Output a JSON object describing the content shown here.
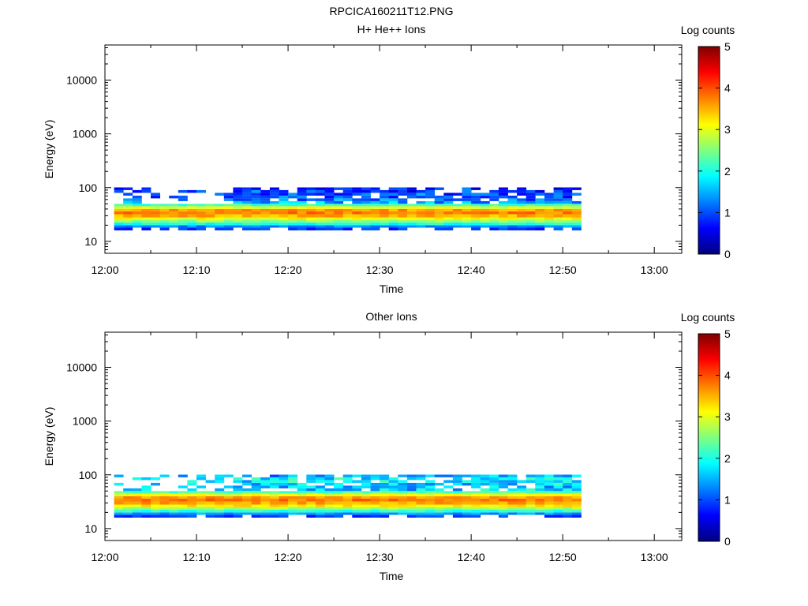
{
  "figure": {
    "title": "RPCICA160211T12.PNG"
  },
  "colorbar": {
    "label": "Log counts",
    "range": [
      0,
      5
    ],
    "ticks": [
      "0",
      "1",
      "2",
      "3",
      "4",
      "5"
    ],
    "colormap": [
      "#00007f",
      "#0000ff",
      "#007fff",
      "#00ffff",
      "#7fff7f",
      "#ffff00",
      "#ff7f00",
      "#ff0000",
      "#7f0000"
    ]
  },
  "chart_data": [
    {
      "type": "heatmap",
      "title": "H+ He++ Ions",
      "xlabel": "Time",
      "ylabel": "Energy (eV)",
      "y_scale": "log",
      "x_range": [
        "12:00",
        "13:03"
      ],
      "y_range": [
        6,
        45000
      ],
      "x_ticks": [
        "12:00",
        "12:10",
        "12:20",
        "12:30",
        "12:40",
        "12:50",
        "13:00"
      ],
      "y_ticks": [
        "10",
        "100",
        "1000",
        "10000"
      ],
      "data_time_range": [
        "12:01",
        "12:52"
      ],
      "profile": {
        "energy_eV": [
          16,
          18,
          20,
          22.5,
          25,
          28,
          32,
          36,
          40,
          45,
          50,
          56,
          63,
          71,
          80,
          90
        ],
        "log_counts": [
          0.9,
          1.3,
          2.0,
          2.6,
          3.1,
          3.5,
          3.75,
          3.6,
          3.0,
          2.2,
          1.4,
          1.1,
          0.9,
          0.9,
          0.8,
          0.6
        ]
      },
      "upper_band_eV": [
        50,
        100
      ],
      "upper_band_time_range": [
        "12:14",
        "12:52"
      ]
    },
    {
      "type": "heatmap",
      "title": "Other Ions",
      "xlabel": "Time",
      "ylabel": "Energy (eV)",
      "y_scale": "log",
      "x_range": [
        "12:00",
        "13:03"
      ],
      "y_range": [
        6,
        45000
      ],
      "x_ticks": [
        "12:00",
        "12:10",
        "12:20",
        "12:30",
        "12:40",
        "12:50",
        "13:00"
      ],
      "y_ticks": [
        "10",
        "100",
        "1000",
        "10000"
      ],
      "data_time_range": [
        "12:01",
        "12:52"
      ],
      "profile": {
        "energy_eV": [
          16,
          18,
          20,
          22.5,
          25,
          28,
          32,
          36,
          40,
          45,
          50,
          56,
          63,
          71,
          80,
          90
        ],
        "log_counts": [
          0.9,
          1.4,
          2.1,
          2.7,
          3.2,
          3.55,
          3.8,
          3.6,
          3.0,
          2.3,
          1.6,
          1.5,
          1.6,
          1.7,
          1.7,
          1.4
        ]
      },
      "upper_band_eV": [
        50,
        100
      ],
      "upper_band_time_range": [
        "12:14",
        "12:52"
      ]
    }
  ]
}
